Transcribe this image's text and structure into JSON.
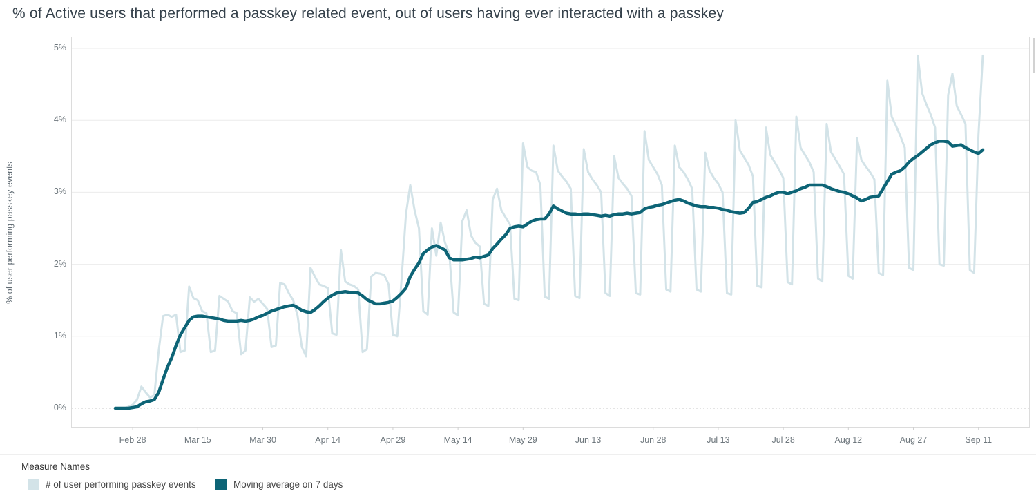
{
  "title": "% of Active users that performed a passkey related event, out of users having ever interacted with a passkey",
  "y_axis": {
    "title": "% of user performing passkey events",
    "tick_labels": [
      "0%",
      "1%",
      "2%",
      "3%",
      "4%",
      "5%"
    ],
    "min": 0,
    "max": 5
  },
  "x_axis": {
    "tick_labels": [
      "Feb 28",
      "Mar 15",
      "Mar 30",
      "Apr 14",
      "Apr 29",
      "May 14",
      "May 29",
      "Jun 13",
      "Jun 28",
      "Jul 13",
      "Jul 28",
      "Aug 12",
      "Aug 27",
      "Sep 11"
    ]
  },
  "legend": {
    "title": "Measure Names",
    "items": [
      {
        "label": "# of user performing passkey events",
        "color": "#d3e3e8"
      },
      {
        "label": "Moving average on 7 days",
        "color": "#0d6476"
      }
    ]
  },
  "colors": {
    "gridline": "#ebebeb",
    "zero_line": "#c8c8c8",
    "axis_border": "#dcdcdc",
    "tick_mark": "#d0d0d0",
    "axis_text": "#6e777d"
  },
  "chart_data": {
    "type": "line",
    "title": "% of Active users that performed a passkey related event, out of users having ever interacted with a passkey",
    "xlabel": "",
    "ylabel": "% of user performing passkey events",
    "ylim": [
      0,
      5
    ],
    "grid": "horizontal",
    "legend_position": "bottom",
    "x_unit": "day",
    "start_date": "Feb 24",
    "end_date": "Sep 12",
    "x_tick_labels": [
      "Feb 28",
      "Mar 15",
      "Mar 30",
      "Apr 14",
      "Apr 29",
      "May 14",
      "May 29",
      "Jun 13",
      "Jun 28",
      "Jul 13",
      "Jul 28",
      "Aug 12",
      "Aug 27",
      "Sep 11"
    ],
    "first_tick_day_index": 4,
    "tick_interval_days": 15,
    "series": [
      {
        "name": "# of user performing passkey events",
        "color": "#d3e3e8",
        "width": 3,
        "values": [
          0.0,
          0.0,
          0.0,
          0.02,
          0.05,
          0.12,
          0.3,
          0.22,
          0.15,
          0.18,
          0.8,
          1.28,
          1.3,
          1.27,
          1.3,
          0.78,
          0.8,
          1.69,
          1.53,
          1.5,
          1.35,
          1.32,
          0.78,
          0.8,
          1.56,
          1.52,
          1.48,
          1.35,
          1.32,
          0.75,
          0.8,
          1.54,
          1.48,
          1.52,
          1.45,
          1.38,
          0.85,
          0.87,
          1.74,
          1.72,
          1.6,
          1.5,
          1.29,
          0.85,
          0.72,
          1.95,
          1.83,
          1.72,
          1.7,
          1.67,
          1.04,
          1.02,
          2.2,
          1.76,
          1.72,
          1.7,
          1.65,
          0.78,
          0.82,
          1.83,
          1.88,
          1.87,
          1.85,
          1.72,
          1.02,
          1.0,
          1.8,
          2.7,
          3.1,
          2.75,
          2.5,
          1.35,
          1.3,
          2.5,
          2.12,
          2.58,
          2.3,
          2.15,
          1.33,
          1.29,
          2.6,
          2.75,
          2.4,
          2.3,
          2.25,
          1.45,
          1.42,
          2.9,
          3.05,
          2.75,
          2.65,
          2.55,
          1.52,
          1.5,
          3.68,
          3.35,
          3.3,
          3.28,
          3.1,
          1.55,
          1.52,
          3.65,
          3.3,
          3.22,
          3.15,
          3.05,
          1.56,
          1.53,
          3.6,
          3.28,
          3.18,
          3.1,
          3.0,
          1.6,
          1.56,
          3.5,
          3.2,
          3.12,
          3.05,
          2.95,
          1.6,
          1.58,
          3.85,
          3.45,
          3.35,
          3.25,
          3.1,
          1.65,
          1.62,
          3.65,
          3.35,
          3.28,
          3.18,
          3.05,
          1.65,
          1.62,
          3.55,
          3.3,
          3.2,
          3.12,
          3.0,
          1.6,
          1.58,
          4.0,
          3.58,
          3.48,
          3.38,
          3.22,
          1.7,
          1.68,
          3.9,
          3.52,
          3.42,
          3.32,
          3.2,
          1.75,
          1.72,
          4.05,
          3.62,
          3.52,
          3.42,
          3.28,
          1.8,
          1.76,
          3.95,
          3.56,
          3.46,
          3.36,
          3.25,
          1.84,
          1.8,
          3.75,
          3.45,
          3.36,
          3.28,
          3.18,
          1.88,
          1.85,
          4.55,
          4.05,
          3.92,
          3.78,
          3.62,
          1.95,
          1.92,
          4.9,
          4.38,
          4.22,
          4.08,
          3.9,
          2.0,
          1.98,
          4.35,
          4.65,
          4.2,
          4.08,
          3.95,
          1.92,
          1.88,
          3.8,
          4.9
        ]
      },
      {
        "name": "Moving average on 7 days",
        "color": "#0d6476",
        "width": 4.5,
        "values": [
          0.0,
          0.0,
          0.0,
          0.0,
          0.01,
          0.02,
          0.06,
          0.09,
          0.1,
          0.12,
          0.22,
          0.4,
          0.57,
          0.7,
          0.87,
          1.02,
          1.12,
          1.22,
          1.27,
          1.28,
          1.28,
          1.27,
          1.26,
          1.25,
          1.24,
          1.22,
          1.21,
          1.21,
          1.21,
          1.22,
          1.21,
          1.22,
          1.24,
          1.27,
          1.29,
          1.32,
          1.35,
          1.37,
          1.39,
          1.41,
          1.42,
          1.43,
          1.4,
          1.36,
          1.34,
          1.33,
          1.37,
          1.42,
          1.48,
          1.53,
          1.57,
          1.6,
          1.61,
          1.62,
          1.61,
          1.61,
          1.6,
          1.56,
          1.51,
          1.48,
          1.45,
          1.45,
          1.46,
          1.47,
          1.49,
          1.54,
          1.6,
          1.67,
          1.83,
          1.93,
          2.02,
          2.15,
          2.2,
          2.24,
          2.26,
          2.23,
          2.2,
          2.09,
          2.06,
          2.06,
          2.06,
          2.07,
          2.08,
          2.1,
          2.09,
          2.11,
          2.13,
          2.22,
          2.28,
          2.35,
          2.41,
          2.5,
          2.52,
          2.53,
          2.52,
          2.56,
          2.6,
          2.62,
          2.63,
          2.63,
          2.7,
          2.81,
          2.77,
          2.74,
          2.71,
          2.7,
          2.7,
          2.69,
          2.7,
          2.7,
          2.69,
          2.68,
          2.67,
          2.68,
          2.67,
          2.69,
          2.7,
          2.7,
          2.71,
          2.7,
          2.71,
          2.72,
          2.77,
          2.79,
          2.8,
          2.82,
          2.83,
          2.85,
          2.87,
          2.89,
          2.9,
          2.88,
          2.85,
          2.83,
          2.81,
          2.8,
          2.8,
          2.79,
          2.79,
          2.78,
          2.76,
          2.75,
          2.73,
          2.72,
          2.71,
          2.72,
          2.78,
          2.86,
          2.87,
          2.9,
          2.93,
          2.95,
          2.98,
          3.0,
          3.0,
          2.98,
          3.0,
          3.02,
          3.05,
          3.07,
          3.1,
          3.1,
          3.1,
          3.1,
          3.08,
          3.05,
          3.03,
          3.01,
          3.0,
          2.98,
          2.95,
          2.92,
          2.88,
          2.9,
          2.93,
          2.94,
          2.95,
          3.05,
          3.15,
          3.25,
          3.28,
          3.3,
          3.35,
          3.42,
          3.47,
          3.51,
          3.56,
          3.61,
          3.66,
          3.69,
          3.71,
          3.71,
          3.7,
          3.64,
          3.65,
          3.66,
          3.62,
          3.59,
          3.56,
          3.54,
          3.59
        ]
      }
    ]
  }
}
